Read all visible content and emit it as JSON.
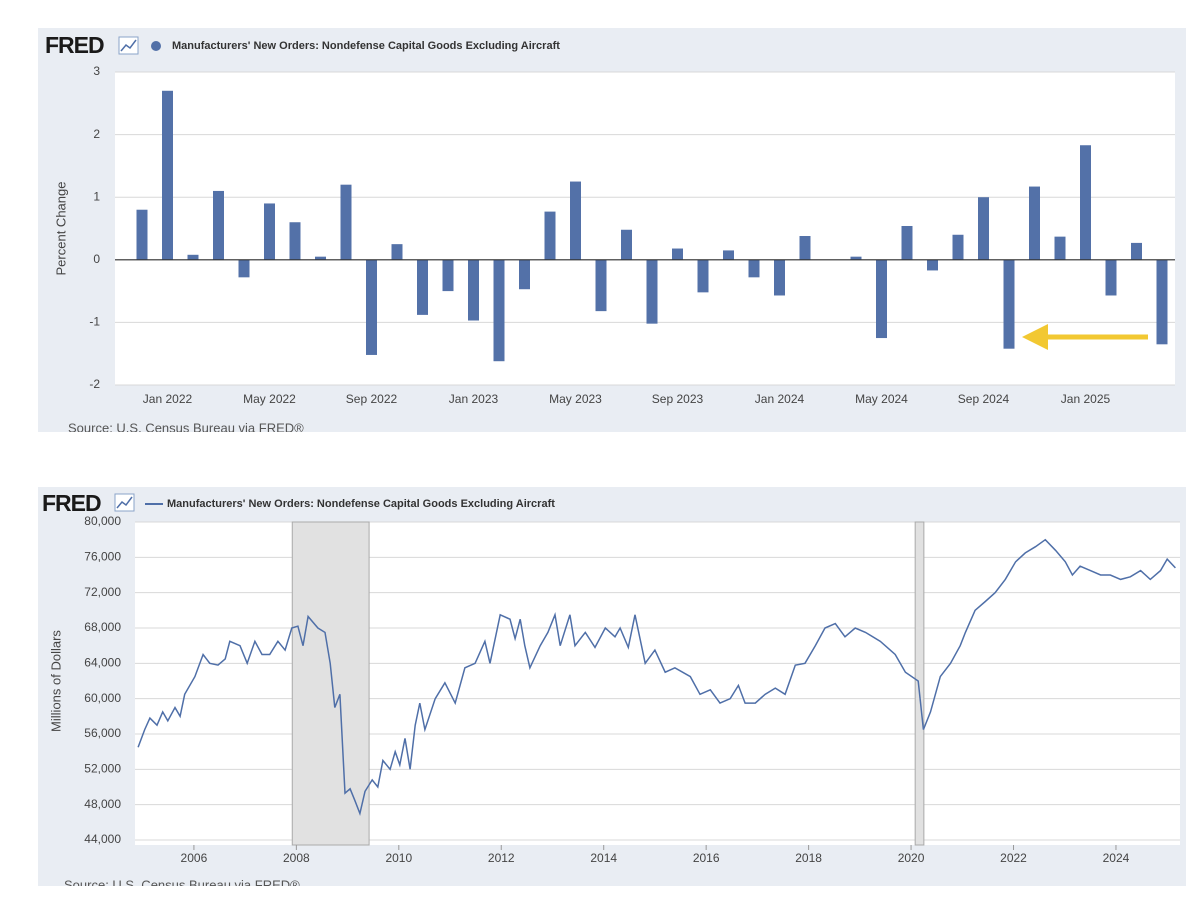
{
  "chart_data": [
    {
      "type": "bar",
      "logo": "FRED",
      "series_name": "Manufacturers' New Orders: Nondefense Capital Goods Excluding Aircraft",
      "ylabel": "Percent Change",
      "source": "Source: U.S. Census Bureau via FRED®",
      "color": "#5371a8",
      "categories": [
        null,
        "Jan 2022",
        null,
        null,
        null,
        "May 2022",
        null,
        null,
        null,
        "Sep 2022",
        null,
        null,
        null,
        "Jan 2023",
        null,
        null,
        null,
        "May 2023",
        null,
        null,
        null,
        "Sep 2023",
        null,
        null,
        null,
        "Jan 2024",
        null,
        null,
        null,
        "May 2024",
        null,
        null,
        null,
        "Sep 2024",
        null,
        null,
        null,
        "Jan 2025",
        null,
        null,
        null
      ],
      "values": [
        0.8,
        2.7,
        0.08,
        1.1,
        -0.28,
        0.9,
        0.6,
        0.05,
        1.2,
        -1.52,
        0.25,
        -0.88,
        -0.5,
        -0.97,
        -1.62,
        -0.47,
        0.77,
        1.25,
        -0.82,
        0.48,
        -1.02,
        0.18,
        -0.52,
        0.15,
        -0.28,
        -0.57,
        0.38,
        0,
        0.05,
        -1.25,
        0.54,
        -0.17,
        0.4,
        1.0,
        -1.42,
        1.17,
        0.37,
        1.83,
        -0.57,
        0.27,
        -1.35
      ],
      "ylim": [
        -2,
        3
      ],
      "yticks": [
        -2,
        -1,
        0,
        1,
        2,
        3
      ],
      "grid": true
    },
    {
      "type": "line",
      "logo": "FRED",
      "series_name": "Manufacturers' New Orders: Nondefense Capital Goods Excluding Aircraft",
      "ylabel": "Millions of Dollars",
      "source": "Source: U.S. Census Bureau via FRED®",
      "color": "#4f6fa8",
      "x": [
        2004.91,
        2005.04,
        2005.14,
        2005.28,
        2005.39,
        2005.49,
        2005.63,
        2005.73,
        2005.82,
        2006.02,
        2006.18,
        2006.31,
        2006.47,
        2006.61,
        2006.7,
        2006.9,
        2007.04,
        2007.19,
        2007.33,
        2007.48,
        2007.64,
        2007.78,
        2007.91,
        2008.03,
        2008.13,
        2008.23,
        2008.42,
        2008.56,
        2008.66,
        2008.75,
        2008.85,
        2008.95,
        2009.05,
        2009.14,
        2009.24,
        2009.34,
        2009.48,
        2009.59,
        2009.69,
        2009.83,
        2009.93,
        2010.02,
        2010.12,
        2010.22,
        2010.32,
        2010.41,
        2010.51,
        2010.71,
        2010.9,
        2011.1,
        2011.29,
        2011.49,
        2011.68,
        2011.78,
        2011.98,
        2012.17,
        2012.27,
        2012.37,
        2012.46,
        2012.56,
        2012.76,
        2012.91,
        2013.05,
        2013.15,
        2013.34,
        2013.44,
        2013.64,
        2013.83,
        2014.03,
        2014.22,
        2014.32,
        2014.48,
        2014.61,
        2014.81,
        2015.0,
        2015.2,
        2015.39,
        2015.69,
        2015.88,
        2016.08,
        2016.27,
        2016.47,
        2016.63,
        2016.76,
        2016.96,
        2017.15,
        2017.35,
        2017.54,
        2017.74,
        2017.93,
        2018.13,
        2018.32,
        2018.52,
        2018.71,
        2018.91,
        2019.11,
        2019.4,
        2019.69,
        2019.89,
        2020.14,
        2020.24,
        2020.38,
        2020.57,
        2020.77,
        2020.96,
        2021.06,
        2021.25,
        2021.45,
        2021.64,
        2021.84,
        2022.04,
        2022.23,
        2022.43,
        2022.62,
        2022.82,
        2023.01,
        2023.15,
        2023.3,
        2023.5,
        2023.7,
        2023.89,
        2024.09,
        2024.28,
        2024.48,
        2024.67,
        2024.87,
        2025.0,
        2025.16
      ],
      "values": [
        54500,
        56500,
        57800,
        57000,
        58500,
        57500,
        59000,
        58000,
        60500,
        62500,
        65000,
        64000,
        63800,
        64500,
        66500,
        66000,
        64000,
        66500,
        65000,
        65000,
        66500,
        65500,
        68000,
        68200,
        66000,
        69300,
        68000,
        67500,
        64000,
        59000,
        60500,
        49300,
        49800,
        48500,
        47000,
        49500,
        50800,
        50000,
        53000,
        52000,
        54000,
        52500,
        55500,
        52000,
        57000,
        59500,
        56500,
        60000,
        61800,
        59500,
        63500,
        64000,
        66500,
        64000,
        69500,
        69000,
        66800,
        69000,
        66000,
        63500,
        66000,
        67500,
        69500,
        66000,
        69500,
        66000,
        67500,
        65800,
        68000,
        67000,
        68000,
        65800,
        69500,
        64000,
        65500,
        63000,
        63500,
        62500,
        60500,
        61000,
        59500,
        60000,
        61500,
        59500,
        59500,
        60500,
        61200,
        60500,
        63800,
        64000,
        66000,
        68000,
        68500,
        67000,
        68000,
        67500,
        66500,
        65000,
        63000,
        62000,
        56500,
        58500,
        62500,
        64000,
        66000,
        67500,
        70000,
        71000,
        72000,
        73500,
        75500,
        76500,
        77200,
        78000,
        76800,
        75500,
        74000,
        75000,
        74500,
        74000,
        74000,
        73500,
        73800,
        74500,
        73500,
        74500,
        75800,
        74800
      ],
      "xlim": [
        2004.85,
        2025.25
      ],
      "xticks": [
        2006,
        2008,
        2010,
        2012,
        2014,
        2016,
        2018,
        2020,
        2022,
        2024
      ],
      "ylim": [
        44000,
        80000
      ],
      "yticks": [
        {
          "value": 44000,
          "label": "44,000"
        },
        {
          "value": 48000,
          "label": "48,000"
        },
        {
          "value": 52000,
          "label": "52,000"
        },
        {
          "value": 56000,
          "label": "56,000"
        },
        {
          "value": 60000,
          "label": "60,000"
        },
        {
          "value": 64000,
          "label": "64,000"
        },
        {
          "value": 68000,
          "label": "68,000"
        },
        {
          "value": 72000,
          "label": "72,000"
        },
        {
          "value": 76000,
          "label": "76,000"
        },
        {
          "value": 80000,
          "label": "80,000"
        }
      ],
      "shaded_periods": [
        [
          2007.92,
          2009.42
        ],
        [
          2020.08,
          2020.25
        ]
      ],
      "grid": true
    }
  ]
}
